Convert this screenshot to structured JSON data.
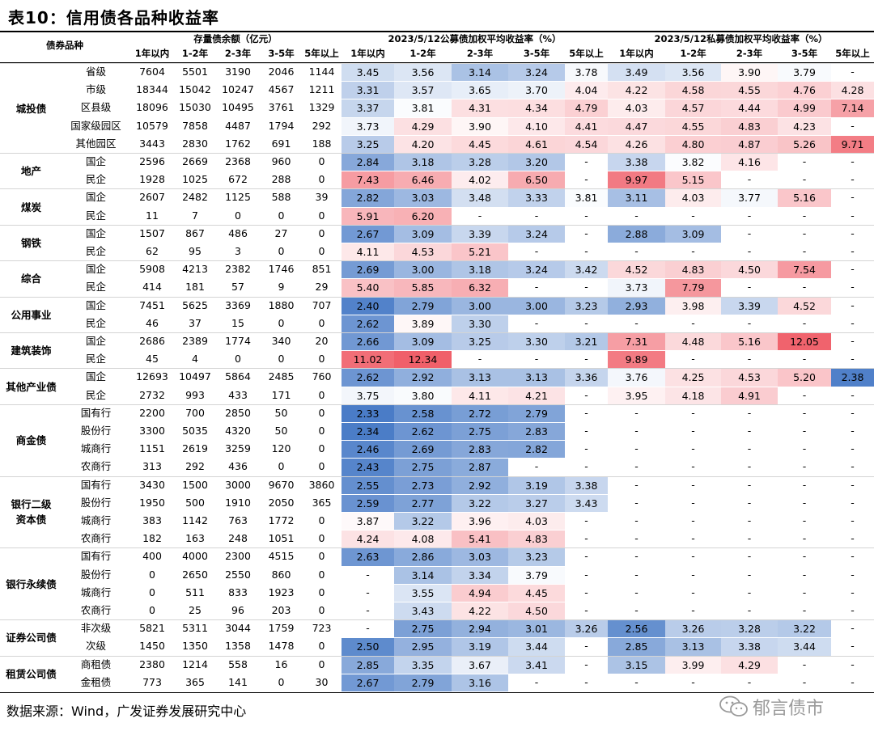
{
  "title": "表10：信用债各品种收益率",
  "source": "数据来源：Wind，广发证券发展研究中心",
  "watermark": "郁言债市",
  "header": {
    "category": "债券品种",
    "stock": "存量债余额（亿元）",
    "public": "2023/5/12公募债加权平均收益率（%）",
    "private": "2023/5/12私募债加权平均收益率（%）",
    "buckets": [
      "1年以内",
      "1-2年",
      "2-3年",
      "3-5年",
      "5年以上"
    ]
  },
  "groups": [
    {
      "name": "城投债",
      "start": 0,
      "span": 5
    },
    {
      "name": "地产",
      "start": 5,
      "span": 2
    },
    {
      "name": "煤炭",
      "start": 7,
      "span": 2
    },
    {
      "name": "钢铁",
      "start": 9,
      "span": 2
    },
    {
      "name": "综合",
      "start": 11,
      "span": 2
    },
    {
      "name": "公用事业",
      "start": 13,
      "span": 2
    },
    {
      "name": "建筑装饰",
      "start": 15,
      "span": 2
    },
    {
      "name": "其他产业债",
      "start": 17,
      "span": 2
    },
    {
      "name": "商金债",
      "start": 19,
      "span": 4
    },
    {
      "name": "银行二级\n资本债",
      "start": 23,
      "span": 4
    },
    {
      "name": "银行永续债",
      "start": 27,
      "span": 4
    },
    {
      "name": "证券公司债",
      "start": 31,
      "span": 2
    },
    {
      "name": "租赁公司债",
      "start": 33,
      "span": 2
    }
  ],
  "rows": [
    {
      "sub": "省级",
      "stock": [
        "7604",
        "5501",
        "3190",
        "2046",
        "1144"
      ],
      "pub": [
        "3.45",
        "3.56",
        "3.14",
        "3.24",
        "3.78"
      ],
      "pri": [
        "3.49",
        "3.56",
        "3.90",
        "3.79",
        "-"
      ]
    },
    {
      "sub": "市级",
      "stock": [
        "18344",
        "15042",
        "10247",
        "4567",
        "1211"
      ],
      "pub": [
        "3.31",
        "3.57",
        "3.65",
        "3.70",
        "4.04"
      ],
      "pri": [
        "4.22",
        "4.58",
        "4.55",
        "4.76",
        "4.28"
      ]
    },
    {
      "sub": "区县级",
      "stock": [
        "18096",
        "15030",
        "10495",
        "3761",
        "1329"
      ],
      "pub": [
        "3.37",
        "3.81",
        "4.31",
        "4.34",
        "4.79"
      ],
      "pri": [
        "4.03",
        "4.57",
        "4.44",
        "4.99",
        "7.14"
      ]
    },
    {
      "sub": "国家级园区",
      "stock": [
        "10579",
        "7858",
        "4487",
        "1794",
        "292"
      ],
      "pub": [
        "3.73",
        "4.29",
        "3.90",
        "4.10",
        "4.41"
      ],
      "pri": [
        "4.47",
        "4.55",
        "4.83",
        "4.23",
        "-"
      ]
    },
    {
      "sub": "其他园区",
      "stock": [
        "3443",
        "2830",
        "1762",
        "691",
        "188"
      ],
      "pub": [
        "3.25",
        "4.20",
        "4.45",
        "4.61",
        "4.54"
      ],
      "pri": [
        "4.26",
        "4.80",
        "4.87",
        "5.26",
        "9.71"
      ]
    },
    {
      "sub": "国企",
      "stock": [
        "2596",
        "2669",
        "2368",
        "960",
        "0"
      ],
      "pub": [
        "2.84",
        "3.18",
        "3.28",
        "3.20",
        "-"
      ],
      "pri": [
        "3.38",
        "3.82",
        "4.16",
        "-",
        "-"
      ]
    },
    {
      "sub": "民企",
      "stock": [
        "1928",
        "1025",
        "672",
        "288",
        "0"
      ],
      "pub": [
        "7.43",
        "6.46",
        "4.02",
        "6.50",
        "-"
      ],
      "pri": [
        "9.97",
        "5.15",
        "-",
        "-",
        "-"
      ]
    },
    {
      "sub": "国企",
      "stock": [
        "2607",
        "2482",
        "1125",
        "588",
        "39"
      ],
      "pub": [
        "2.82",
        "3.03",
        "3.48",
        "3.33",
        "3.81"
      ],
      "pri": [
        "3.11",
        "4.03",
        "3.77",
        "5.16",
        "-"
      ]
    },
    {
      "sub": "民企",
      "stock": [
        "11",
        "7",
        "0",
        "0",
        "0"
      ],
      "pub": [
        "5.91",
        "6.20",
        "-",
        "-",
        "-"
      ],
      "pri": [
        "-",
        "-",
        "-",
        "-",
        "-"
      ]
    },
    {
      "sub": "国企",
      "stock": [
        "1507",
        "867",
        "486",
        "27",
        "0"
      ],
      "pub": [
        "2.67",
        "3.09",
        "3.39",
        "3.24",
        "-"
      ],
      "pri": [
        "2.88",
        "3.09",
        "-",
        "-",
        "-"
      ]
    },
    {
      "sub": "民企",
      "stock": [
        "62",
        "95",
        "3",
        "0",
        "0"
      ],
      "pub": [
        "4.11",
        "4.53",
        "5.21",
        "-",
        "-"
      ],
      "pri": [
        "-",
        "-",
        "-",
        "-",
        "-"
      ]
    },
    {
      "sub": "国企",
      "stock": [
        "5908",
        "4213",
        "2382",
        "1746",
        "851"
      ],
      "pub": [
        "2.69",
        "3.00",
        "3.18",
        "3.24",
        "3.42"
      ],
      "pri": [
        "4.52",
        "4.83",
        "4.50",
        "7.54",
        "-"
      ]
    },
    {
      "sub": "民企",
      "stock": [
        "414",
        "181",
        "57",
        "9",
        "29"
      ],
      "pub": [
        "5.40",
        "5.85",
        "6.32",
        "-",
        "-"
      ],
      "pri": [
        "3.73",
        "7.79",
        "-",
        "-",
        "-"
      ]
    },
    {
      "sub": "国企",
      "stock": [
        "7451",
        "5625",
        "3369",
        "1880",
        "707"
      ],
      "pub": [
        "2.40",
        "2.79",
        "3.00",
        "3.00",
        "3.23"
      ],
      "pri": [
        "2.93",
        "3.98",
        "3.39",
        "4.52",
        "-"
      ]
    },
    {
      "sub": "民企",
      "stock": [
        "46",
        "37",
        "15",
        "0",
        "0"
      ],
      "pub": [
        "2.62",
        "3.89",
        "3.30",
        "-",
        "-"
      ],
      "pri": [
        "-",
        "-",
        "-",
        "-",
        "-"
      ]
    },
    {
      "sub": "国企",
      "stock": [
        "2686",
        "2389",
        "1774",
        "340",
        "20"
      ],
      "pub": [
        "2.66",
        "3.09",
        "3.25",
        "3.30",
        "3.21"
      ],
      "pri": [
        "7.31",
        "4.48",
        "5.16",
        "12.05",
        "-"
      ]
    },
    {
      "sub": "民企",
      "stock": [
        "45",
        "4",
        "0",
        "0",
        "0"
      ],
      "pub": [
        "11.02",
        "12.34",
        "-",
        "-",
        "-"
      ],
      "pri": [
        "9.89",
        "-",
        "-",
        "-",
        "-"
      ]
    },
    {
      "sub": "国企",
      "stock": [
        "12693",
        "10497",
        "5864",
        "2485",
        "760"
      ],
      "pub": [
        "2.62",
        "2.92",
        "3.13",
        "3.13",
        "3.36"
      ],
      "pri": [
        "3.76",
        "4.25",
        "4.53",
        "5.20",
        "2.38"
      ]
    },
    {
      "sub": "民企",
      "stock": [
        "2732",
        "993",
        "433",
        "171",
        "0"
      ],
      "pub": [
        "3.75",
        "3.80",
        "4.11",
        "4.21",
        "-"
      ],
      "pri": [
        "3.95",
        "4.18",
        "4.91",
        "-",
        "-"
      ]
    },
    {
      "sub": "国有行",
      "stock": [
        "2200",
        "700",
        "2850",
        "50",
        "0"
      ],
      "pub": [
        "2.33",
        "2.58",
        "2.72",
        "2.79",
        "-"
      ],
      "pri": [
        "-",
        "-",
        "-",
        "-",
        "-"
      ]
    },
    {
      "sub": "股份行",
      "stock": [
        "3300",
        "5035",
        "4320",
        "50",
        "0"
      ],
      "pub": [
        "2.34",
        "2.62",
        "2.75",
        "2.83",
        "-"
      ],
      "pri": [
        "-",
        "-",
        "-",
        "-",
        "-"
      ]
    },
    {
      "sub": "城商行",
      "stock": [
        "1151",
        "2619",
        "3259",
        "120",
        "0"
      ],
      "pub": [
        "2.46",
        "2.69",
        "2.83",
        "2.82",
        "-"
      ],
      "pri": [
        "-",
        "-",
        "-",
        "-",
        "-"
      ]
    },
    {
      "sub": "农商行",
      "stock": [
        "313",
        "292",
        "436",
        "0",
        "0"
      ],
      "pub": [
        "2.43",
        "2.75",
        "2.87",
        "-",
        "-"
      ],
      "pri": [
        "-",
        "-",
        "-",
        "-",
        "-"
      ]
    },
    {
      "sub": "国有行",
      "stock": [
        "3430",
        "1500",
        "3000",
        "9670",
        "3860"
      ],
      "pub": [
        "2.55",
        "2.73",
        "2.92",
        "3.19",
        "3.38"
      ],
      "pri": [
        "-",
        "-",
        "-",
        "-",
        "-"
      ]
    },
    {
      "sub": "股份行",
      "stock": [
        "1950",
        "500",
        "1910",
        "2050",
        "365"
      ],
      "pub": [
        "2.59",
        "2.77",
        "3.22",
        "3.27",
        "3.43"
      ],
      "pri": [
        "-",
        "-",
        "-",
        "-",
        "-"
      ]
    },
    {
      "sub": "城商行",
      "stock": [
        "383",
        "1142",
        "763",
        "1772",
        "0"
      ],
      "pub": [
        "3.87",
        "3.22",
        "3.96",
        "4.03",
        "-"
      ],
      "pri": [
        "-",
        "-",
        "-",
        "-",
        "-"
      ]
    },
    {
      "sub": "农商行",
      "stock": [
        "182",
        "163",
        "248",
        "1051",
        "0"
      ],
      "pub": [
        "4.24",
        "4.08",
        "5.41",
        "4.83",
        "-"
      ],
      "pri": [
        "-",
        "-",
        "-",
        "-",
        "-"
      ]
    },
    {
      "sub": "国有行",
      "stock": [
        "400",
        "4000",
        "2300",
        "4515",
        "0"
      ],
      "pub": [
        "2.63",
        "2.86",
        "3.03",
        "3.23",
        "-"
      ],
      "pri": [
        "-",
        "-",
        "-",
        "-",
        "-"
      ]
    },
    {
      "sub": "股份行",
      "stock": [
        "0",
        "2650",
        "2550",
        "860",
        "0"
      ],
      "pub": [
        "-",
        "3.14",
        "3.34",
        "3.79",
        "-"
      ],
      "pri": [
        "-",
        "-",
        "-",
        "-",
        "-"
      ]
    },
    {
      "sub": "城商行",
      "stock": [
        "0",
        "511",
        "833",
        "1923",
        "0"
      ],
      "pub": [
        "-",
        "3.55",
        "4.94",
        "4.45",
        "-"
      ],
      "pri": [
        "-",
        "-",
        "-",
        "-",
        "-"
      ]
    },
    {
      "sub": "农商行",
      "stock": [
        "0",
        "25",
        "96",
        "203",
        "0"
      ],
      "pub": [
        "-",
        "3.43",
        "4.22",
        "4.50",
        "-"
      ],
      "pri": [
        "-",
        "-",
        "-",
        "-",
        "-"
      ]
    },
    {
      "sub": "非次级",
      "stock": [
        "5821",
        "5311",
        "3044",
        "1759",
        "723"
      ],
      "pub": [
        "-",
        "2.75",
        "2.94",
        "3.01",
        "3.26"
      ],
      "pri": [
        "2.56",
        "3.26",
        "3.28",
        "3.22",
        "-"
      ]
    },
    {
      "sub": "次级",
      "stock": [
        "1450",
        "1350",
        "1358",
        "1478",
        "0"
      ],
      "pub": [
        "2.50",
        "2.95",
        "3.19",
        "3.44",
        "-"
      ],
      "pri": [
        "2.85",
        "3.13",
        "3.38",
        "3.44",
        "-"
      ]
    },
    {
      "sub": "商租债",
      "stock": [
        "2380",
        "1214",
        "558",
        "16",
        "0"
      ],
      "pub": [
        "2.85",
        "3.35",
        "3.67",
        "3.41",
        "-"
      ],
      "pri": [
        "3.15",
        "3.99",
        "4.29",
        "-",
        "-"
      ]
    },
    {
      "sub": "金租债",
      "stock": [
        "773",
        "365",
        "141",
        "0",
        "30"
      ],
      "pub": [
        "2.67",
        "2.79",
        "3.16",
        "-",
        "-"
      ],
      "pri": [
        "-",
        "-",
        "-",
        "-",
        "-"
      ]
    }
  ],
  "colors": {
    "low": "#4a7cc7",
    "mid": "#ffffff",
    "high": "#f0606a",
    "group_bg": "#ffffff"
  }
}
